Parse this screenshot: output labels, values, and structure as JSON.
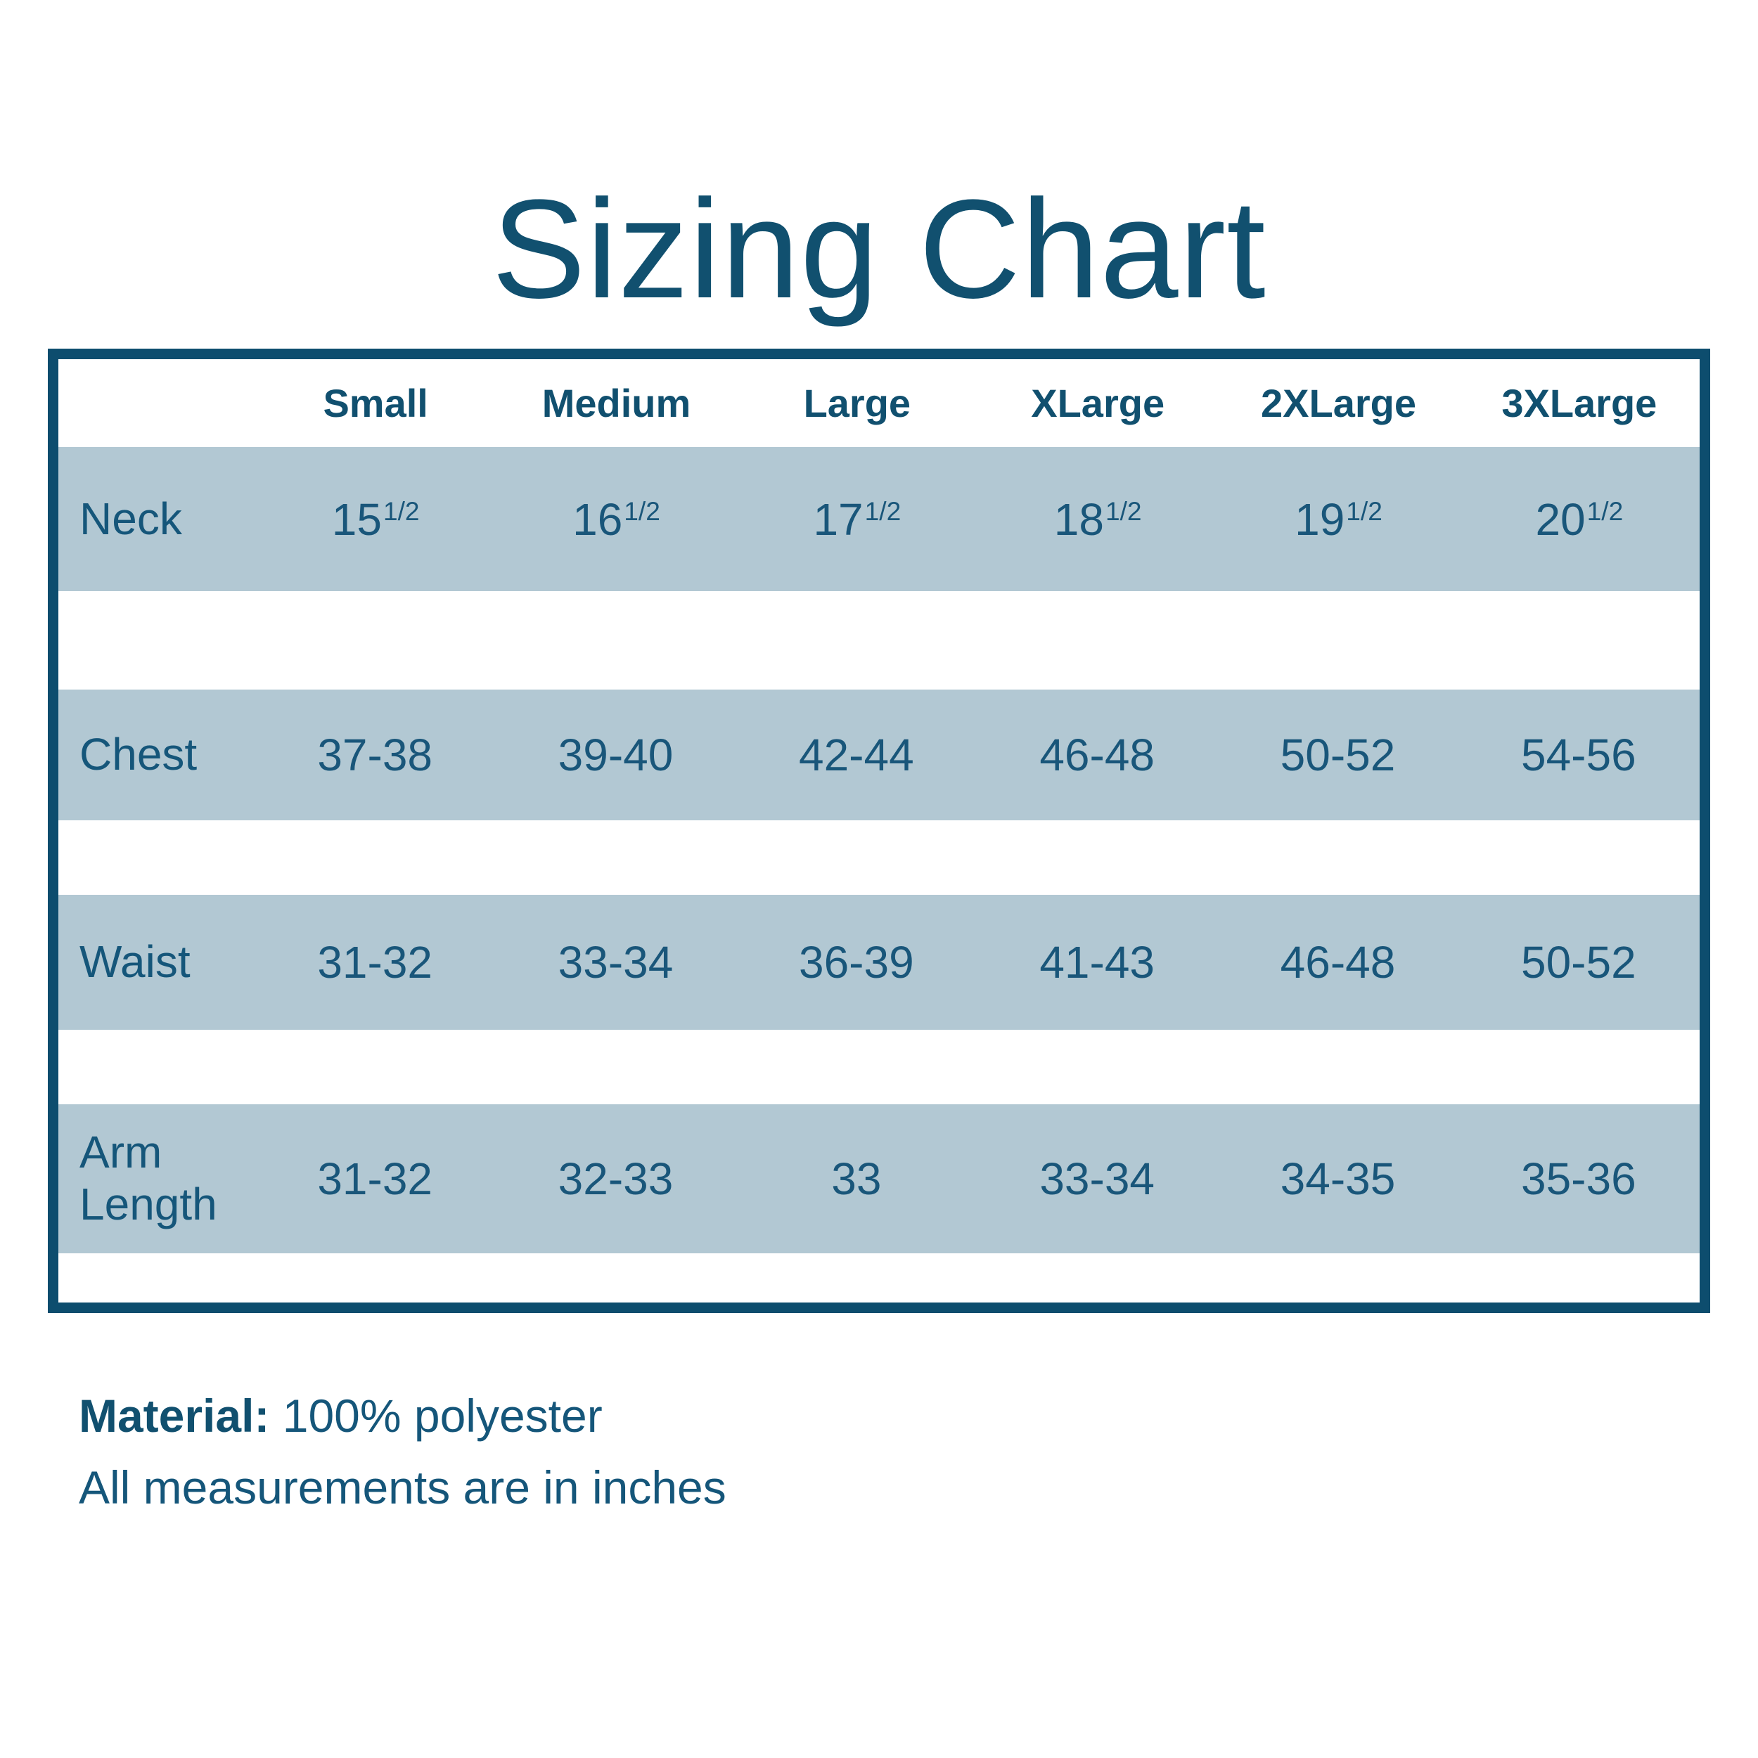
{
  "title": "Sizing Chart",
  "colors": {
    "ink": "#11506f",
    "border": "#0d4d6e",
    "band": "#b2c8d3",
    "background": "#ffffff"
  },
  "table": {
    "size_headers": [
      "Small",
      "Medium",
      "Large",
      "XLarge",
      "2XLarge",
      "3XLarge"
    ],
    "rows": [
      {
        "label": "Neck",
        "values": [
          {
            "base": "15",
            "sup": "1/2"
          },
          {
            "base": "16",
            "sup": "1/2"
          },
          {
            "base": "17",
            "sup": "1/2"
          },
          {
            "base": "18",
            "sup": "1/2"
          },
          {
            "base": "19",
            "sup": "1/2"
          },
          {
            "base": "20",
            "sup": "1/2"
          }
        ]
      },
      {
        "label": "Chest",
        "values": [
          {
            "base": "37-38",
            "sup": ""
          },
          {
            "base": "39-40",
            "sup": ""
          },
          {
            "base": "42-44",
            "sup": ""
          },
          {
            "base": "46-48",
            "sup": ""
          },
          {
            "base": "50-52",
            "sup": ""
          },
          {
            "base": "54-56",
            "sup": ""
          }
        ]
      },
      {
        "label": "Waist",
        "values": [
          {
            "base": "31-32",
            "sup": ""
          },
          {
            "base": "33-34",
            "sup": ""
          },
          {
            "base": "36-39",
            "sup": ""
          },
          {
            "base": "41-43",
            "sup": ""
          },
          {
            "base": "46-48",
            "sup": ""
          },
          {
            "base": "50-52",
            "sup": ""
          }
        ]
      },
      {
        "label": "Arm Length",
        "values": [
          {
            "base": "31-32",
            "sup": ""
          },
          {
            "base": "32-33",
            "sup": ""
          },
          {
            "base": "33",
            "sup": ""
          },
          {
            "base": "33-34",
            "sup": ""
          },
          {
            "base": "34-35",
            "sup": ""
          },
          {
            "base": "35-36",
            "sup": ""
          }
        ]
      }
    ]
  },
  "notes": {
    "material_label": "Material:",
    "material_value": " 100% polyester",
    "measurements_note": "All measurements are in inches"
  },
  "chart_data": {
    "type": "table",
    "title": "Sizing Chart",
    "columns": [
      "",
      "Small",
      "Medium",
      "Large",
      "XLarge",
      "2XLarge",
      "3XLarge"
    ],
    "rows": [
      [
        "Neck",
        "15 1/2",
        "16 1/2",
        "17 1/2",
        "18 1/2",
        "19 1/2",
        "20 1/2"
      ],
      [
        "Chest",
        "37-38",
        "39-40",
        "42-44",
        "46-48",
        "50-52",
        "54-56"
      ],
      [
        "Waist",
        "31-32",
        "33-34",
        "36-39",
        "41-43",
        "46-48",
        "50-52"
      ],
      [
        "Arm Length",
        "31-32",
        "32-33",
        "33",
        "33-34",
        "34-35",
        "35-36"
      ]
    ],
    "notes": [
      "Material: 100% polyester",
      "All measurements are in inches"
    ],
    "layout": {
      "grid": false,
      "banded_rows": true,
      "units": "inches"
    }
  }
}
